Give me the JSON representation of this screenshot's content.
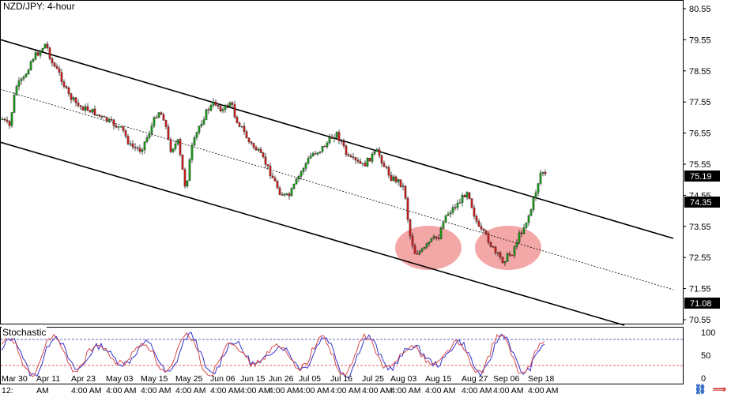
{
  "chart": {
    "symbol_title": "NZD/JPY: 4-hour",
    "price_axis": {
      "ticks": [
        "80.55",
        "79.55",
        "78.55",
        "77.55",
        "76.55",
        "75.55",
        "74.55",
        "73.55",
        "72.55",
        "71.55",
        "70.55"
      ],
      "current_price_label": "75.19",
      "marker_price_label": "74.35",
      "bottom_price_label": "71.08"
    },
    "x_axis": {
      "date_labels": [
        "Mar 30",
        "Apr 11",
        "Apr 23",
        "May 03",
        "May 15",
        "May 25",
        "Jun 06",
        "Jun 15",
        "Jun 26",
        "Jul 05",
        "Jul 16",
        "Jul 25",
        "Aug 03",
        "Aug 15",
        "Aug 27",
        "Sep 06",
        "Sep 18"
      ],
      "time_labels": [
        "12:",
        "AM",
        "4:00 AM",
        "4:00 AM",
        "4:00 AM",
        "4:00 AM",
        "4:00 AM",
        "4:00 AM",
        "4:00 AM",
        "4:00 AM",
        "4:00 AM",
        "4:00 AM",
        "4:00 AM",
        "4:00 AM",
        "4:00 AM",
        "4:00 AM",
        "4:00 AM"
      ]
    }
  },
  "stochastic": {
    "title": "Stochastic",
    "ticks": [
      "100",
      "50",
      "0"
    ]
  },
  "colors": {
    "bull": "#1a9a1a",
    "bear": "#cc1f1f",
    "channel": "#000000",
    "highlight": "#f08a8a",
    "stoch_main": "#3333cc",
    "stoch_signal": "#d43a3a",
    "level_line": "#3333aa"
  },
  "icons": [
    "link-icon",
    "close-icon"
  ]
}
